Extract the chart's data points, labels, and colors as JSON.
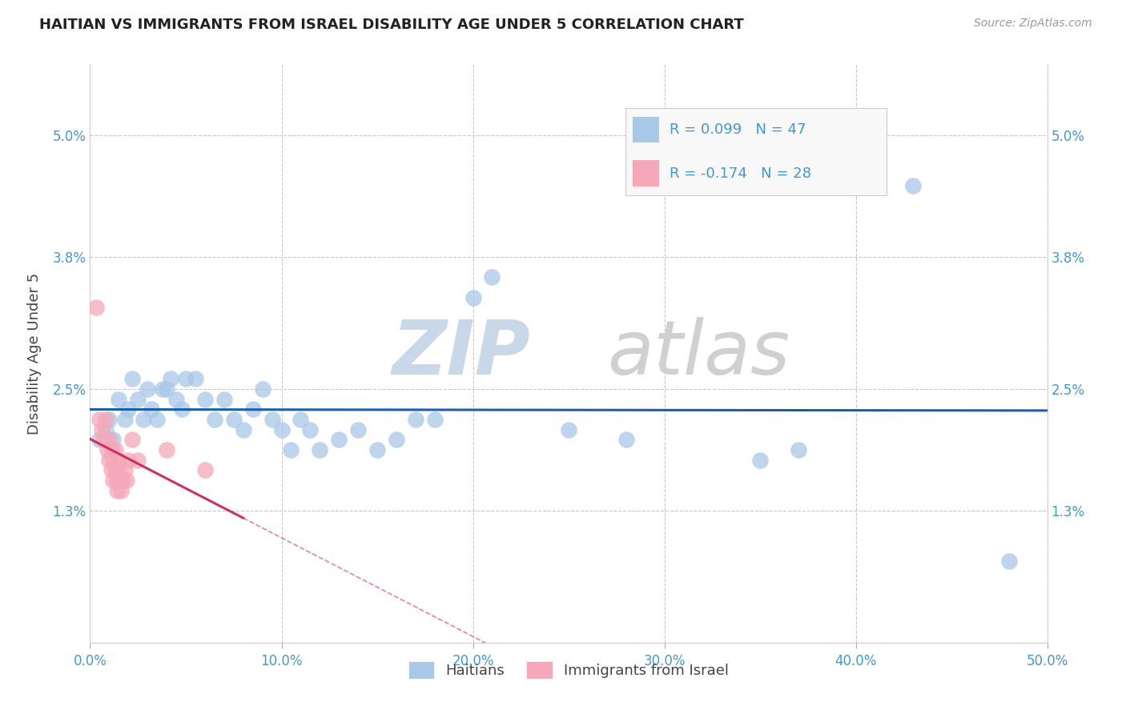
{
  "title": "HAITIAN VS IMMIGRANTS FROM ISRAEL DISABILITY AGE UNDER 5 CORRELATION CHART",
  "source": "Source: ZipAtlas.com",
  "ylabel": "Disability Age Under 5",
  "xlim": [
    0.0,
    0.5
  ],
  "ylim": [
    0.0,
    0.057
  ],
  "xticks": [
    0.0,
    0.1,
    0.2,
    0.3,
    0.4,
    0.5
  ],
  "xticklabels": [
    "0.0%",
    "10.0%",
    "20.0%",
    "30.0%",
    "40.0%",
    "50.0%"
  ],
  "yticks": [
    0.0,
    0.013,
    0.025,
    0.038,
    0.05
  ],
  "yticklabels": [
    "",
    "1.3%",
    "2.5%",
    "3.8%",
    "5.0%"
  ],
  "blue_color": "#a8c8e8",
  "pink_color": "#f4a8b8",
  "blue_line_color": "#1a5fa8",
  "pink_line_color": "#d03060",
  "tick_color": "#4499cc",
  "watermark_zip_color": "#c8d8e8",
  "watermark_atlas_color": "#d0d0d0",
  "blue_scatter": [
    [
      0.005,
      0.02
    ],
    [
      0.008,
      0.021
    ],
    [
      0.01,
      0.022
    ],
    [
      0.012,
      0.02
    ],
    [
      0.015,
      0.024
    ],
    [
      0.018,
      0.022
    ],
    [
      0.02,
      0.023
    ],
    [
      0.022,
      0.026
    ],
    [
      0.025,
      0.024
    ],
    [
      0.028,
      0.022
    ],
    [
      0.03,
      0.025
    ],
    [
      0.032,
      0.023
    ],
    [
      0.035,
      0.022
    ],
    [
      0.038,
      0.025
    ],
    [
      0.04,
      0.025
    ],
    [
      0.042,
      0.026
    ],
    [
      0.045,
      0.024
    ],
    [
      0.048,
      0.023
    ],
    [
      0.05,
      0.026
    ],
    [
      0.055,
      0.026
    ],
    [
      0.06,
      0.024
    ],
    [
      0.065,
      0.022
    ],
    [
      0.07,
      0.024
    ],
    [
      0.075,
      0.022
    ],
    [
      0.08,
      0.021
    ],
    [
      0.085,
      0.023
    ],
    [
      0.09,
      0.025
    ],
    [
      0.095,
      0.022
    ],
    [
      0.1,
      0.021
    ],
    [
      0.105,
      0.019
    ],
    [
      0.11,
      0.022
    ],
    [
      0.115,
      0.021
    ],
    [
      0.12,
      0.019
    ],
    [
      0.13,
      0.02
    ],
    [
      0.14,
      0.021
    ],
    [
      0.15,
      0.019
    ],
    [
      0.16,
      0.02
    ],
    [
      0.17,
      0.022
    ],
    [
      0.18,
      0.022
    ],
    [
      0.2,
      0.034
    ],
    [
      0.21,
      0.036
    ],
    [
      0.25,
      0.021
    ],
    [
      0.28,
      0.02
    ],
    [
      0.35,
      0.018
    ],
    [
      0.37,
      0.019
    ],
    [
      0.43,
      0.045
    ],
    [
      0.48,
      0.008
    ]
  ],
  "pink_scatter": [
    [
      0.003,
      0.033
    ],
    [
      0.005,
      0.022
    ],
    [
      0.006,
      0.021
    ],
    [
      0.007,
      0.02
    ],
    [
      0.008,
      0.022
    ],
    [
      0.009,
      0.019
    ],
    [
      0.01,
      0.02
    ],
    [
      0.01,
      0.018
    ],
    [
      0.011,
      0.017
    ],
    [
      0.011,
      0.019
    ],
    [
      0.012,
      0.016
    ],
    [
      0.012,
      0.018
    ],
    [
      0.013,
      0.017
    ],
    [
      0.013,
      0.019
    ],
    [
      0.014,
      0.016
    ],
    [
      0.014,
      0.015
    ],
    [
      0.015,
      0.017
    ],
    [
      0.015,
      0.018
    ],
    [
      0.016,
      0.016
    ],
    [
      0.016,
      0.015
    ],
    [
      0.017,
      0.016
    ],
    [
      0.018,
      0.017
    ],
    [
      0.019,
      0.016
    ],
    [
      0.02,
      0.018
    ],
    [
      0.022,
      0.02
    ],
    [
      0.025,
      0.018
    ],
    [
      0.04,
      0.019
    ],
    [
      0.06,
      0.017
    ]
  ],
  "pink_line_solid_end": 0.08,
  "pink_line_dashed_end": 0.35
}
